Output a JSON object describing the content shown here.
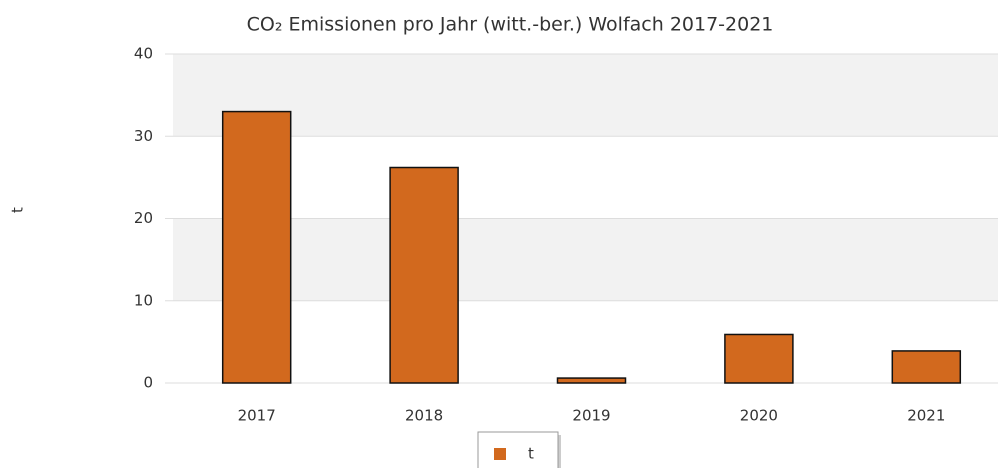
{
  "chart_data": {
    "type": "bar",
    "title": "CO₂ Emissionen pro Jahr (witt.-ber.) Wolfach 2017-2021",
    "y_label": "t",
    "categories": [
      "2017",
      "2018",
      "2019",
      "2020",
      "2021"
    ],
    "series": [
      {
        "name": "t",
        "color": "#d2691e",
        "values": [
          33,
          26.2,
          0.6,
          5.9,
          3.9
        ]
      }
    ],
    "ylim": [
      0,
      40
    ],
    "yticks": [
      0,
      10,
      20,
      30,
      40
    ],
    "grid": true,
    "legend": "bottom"
  }
}
